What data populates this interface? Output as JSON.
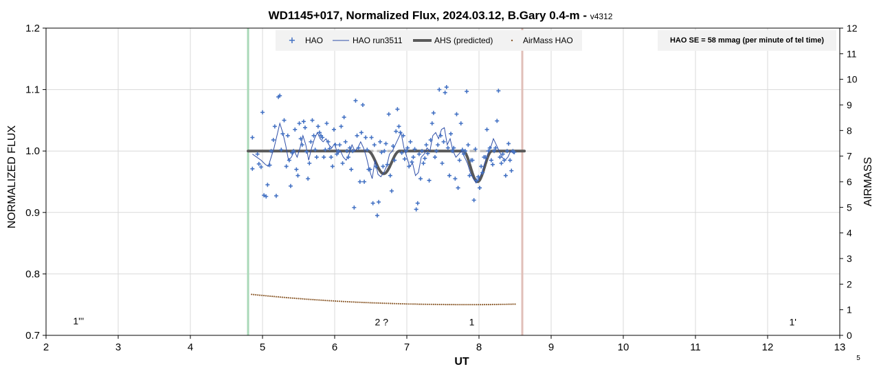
{
  "chart_data": {
    "type": "scatter",
    "title": "WD1145+017, Normalized Flux, 2024.03.12, B.Gary 0.4-m - ",
    "title_version": "v4312",
    "xlabel": "UT",
    "ylabel": "NORMALIZED FLUX",
    "y2label": "AIRMASS",
    "xlim": [
      2,
      13
    ],
    "ylim": [
      0.7,
      1.2
    ],
    "y2lim": [
      0,
      12
    ],
    "x_ticks": [
      "2",
      "3",
      "4",
      "5",
      "6",
      "7",
      "8",
      "9",
      "10",
      "11",
      "12",
      "13"
    ],
    "y_ticks": [
      "0.7",
      "0.8",
      "0.9",
      "1.0",
      "1.1",
      "1.2"
    ],
    "y2_ticks": [
      "0",
      "1",
      "2",
      "3",
      "4",
      "5",
      "6",
      "7",
      "8",
      "9",
      "10",
      "11",
      "12"
    ],
    "grid": true,
    "legend_position": "top",
    "legend": [
      {
        "label": "HAO",
        "color": "#4472C4",
        "style": "plus-marker"
      },
      {
        "label": "HAO run3511",
        "color": "#2F4FA8",
        "style": "thin-line"
      },
      {
        "label": "AHS (predicted)",
        "color": "#595959",
        "style": "thick-line"
      },
      {
        "label": "AirMass HAO",
        "color": "#8B5A2B",
        "style": "small-dot"
      }
    ],
    "note": "HAO SE = 58 mmag (per minute of tel time)",
    "vertical_markers": [
      {
        "x": 4.8,
        "color": "#A9D9B8"
      },
      {
        "x": 8.6,
        "color": "#E0BFB8"
      }
    ],
    "predicted_dips": [
      {
        "center": 6.68,
        "depth": 0.037,
        "half_width": 0.22
      },
      {
        "center": 7.98,
        "depth": 0.05,
        "half_width": 0.2
      }
    ],
    "predicted_x_range": [
      4.8,
      8.63
    ],
    "predicted_dashed_band": [
      6.3,
      8.45
    ],
    "annotations": [
      {
        "text": "1'''",
        "x": 2.45,
        "y": 0.718
      },
      {
        "text": "2 ?",
        "x": 6.65,
        "y": 0.716
      },
      {
        "text": "1",
        "x": 7.9,
        "y": 0.716
      },
      {
        "text": "1'",
        "x": 12.35,
        "y": 0.716
      }
    ],
    "corner_label": "5",
    "series": [
      {
        "name": "HAO",
        "color": "#4472C4",
        "points": [
          [
            4.86,
            1.022
          ],
          [
            4.86,
            0.971
          ],
          [
            4.93,
            0.995
          ],
          [
            4.95,
            0.979
          ],
          [
            4.98,
            0.974
          ],
          [
            5.0,
            1.063
          ],
          [
            5.02,
            0.928
          ],
          [
            5.05,
            0.926
          ],
          [
            5.07,
            0.945
          ],
          [
            5.1,
            0.977
          ],
          [
            5.12,
            1.0
          ],
          [
            5.15,
            1.018
          ],
          [
            5.17,
            1.04
          ],
          [
            5.19,
            0.927
          ],
          [
            5.22,
            1.088
          ],
          [
            5.24,
            1.09
          ],
          [
            5.26,
            1.002
          ],
          [
            5.28,
            1.028
          ],
          [
            5.3,
            1.05
          ],
          [
            5.33,
            0.975
          ],
          [
            5.35,
            1.025
          ],
          [
            5.37,
            0.985
          ],
          [
            5.39,
            0.943
          ],
          [
            5.41,
            0.997
          ],
          [
            5.43,
            1.0
          ],
          [
            5.45,
            1.035
          ],
          [
            5.47,
            0.97
          ],
          [
            5.49,
            0.96
          ],
          [
            5.51,
            1.045
          ],
          [
            5.53,
            1.02
          ],
          [
            5.55,
            1.01
          ],
          [
            5.57,
            1.048
          ],
          [
            5.59,
            1.038
          ],
          [
            5.61,
            0.999
          ],
          [
            5.63,
            0.955
          ],
          [
            5.65,
            0.98
          ],
          [
            5.67,
            1.015
          ],
          [
            5.69,
            1.05
          ],
          [
            5.71,
            1.025
          ],
          [
            5.73,
            1.002
          ],
          [
            5.75,
            0.99
          ],
          [
            5.77,
            1.04
          ],
          [
            5.79,
            1.03
          ],
          [
            5.81,
            1.025
          ],
          [
            5.83,
            1.022
          ],
          [
            5.85,
            0.99
          ],
          [
            5.87,
            1.002
          ],
          [
            5.89,
            1.045
          ],
          [
            5.91,
            1.015
          ],
          [
            5.93,
            1.004
          ],
          [
            5.95,
            0.99
          ],
          [
            5.97,
            0.975
          ],
          [
            5.99,
            1.035
          ],
          [
            6.01,
            1.01
          ],
          [
            6.03,
            0.995
          ],
          [
            6.05,
            1.0
          ],
          [
            6.07,
            1.01
          ],
          [
            6.09,
            1.04
          ],
          [
            6.11,
            0.98
          ],
          [
            6.13,
            1.055
          ],
          [
            6.15,
            1.015
          ],
          [
            6.17,
            1.0
          ],
          [
            6.19,
            0.99
          ],
          [
            6.21,
            1.005
          ],
          [
            6.23,
            0.97
          ],
          [
            6.25,
            1.0
          ],
          [
            6.27,
            0.908
          ],
          [
            6.29,
            1.082
          ],
          [
            6.31,
            1.025
          ],
          [
            6.33,
            1.005
          ],
          [
            6.35,
            0.95
          ],
          [
            6.37,
            1.03
          ],
          [
            6.39,
            1.075
          ],
          [
            6.41,
            0.95
          ],
          [
            6.43,
            1.022
          ],
          [
            6.45,
            1.002
          ],
          [
            6.47,
            0.97
          ],
          [
            6.49,
            0.97
          ],
          [
            6.51,
            1.022
          ],
          [
            6.53,
            0.915
          ],
          [
            6.55,
            1.01
          ],
          [
            6.57,
            0.975
          ],
          [
            6.59,
            0.895
          ],
          [
            6.61,
            0.917
          ],
          [
            6.63,
            1.015
          ],
          [
            6.65,
            0.998
          ],
          [
            6.67,
            0.975
          ],
          [
            6.69,
            1.0
          ],
          [
            6.71,
            1.012
          ],
          [
            6.73,
            0.978
          ],
          [
            6.75,
            1.06
          ],
          [
            6.77,
            0.96
          ],
          [
            6.79,
            0.935
          ],
          [
            6.81,
            1.008
          ],
          [
            6.83,
            0.985
          ],
          [
            6.85,
            1.032
          ],
          [
            6.87,
            1.068
          ],
          [
            6.89,
            1.04
          ],
          [
            6.91,
            1.03
          ],
          [
            6.93,
            0.997
          ],
          [
            6.95,
            1.025
          ],
          [
            6.97,
            0.987
          ],
          [
            6.99,
            1.0
          ],
          [
            7.01,
            1.005
          ],
          [
            7.03,
            0.975
          ],
          [
            7.05,
            1.015
          ],
          [
            7.07,
            0.982
          ],
          [
            7.09,
            0.99
          ],
          [
            7.11,
            1.003
          ],
          [
            7.13,
            0.905
          ],
          [
            7.15,
            0.915
          ],
          [
            7.17,
            0.995
          ],
          [
            7.19,
            0.955
          ],
          [
            7.21,
            1.0
          ],
          [
            7.23,
            0.98
          ],
          [
            7.25,
            0.988
          ],
          [
            7.27,
            1.01
          ],
          [
            7.29,
            0.996
          ],
          [
            7.31,
            0.952
          ],
          [
            7.33,
            1.018
          ],
          [
            7.35,
            1.045
          ],
          [
            7.37,
            1.062
          ],
          [
            7.39,
            0.99
          ],
          [
            7.41,
            1.0
          ],
          [
            7.43,
            1.01
          ],
          [
            7.45,
            1.1
          ],
          [
            7.47,
            1.025
          ],
          [
            7.49,
            0.98
          ],
          [
            7.51,
            1.015
          ],
          [
            7.53,
            1.095
          ],
          [
            7.55,
            1.104
          ],
          [
            7.57,
            1.005
          ],
          [
            7.59,
            0.96
          ],
          [
            7.61,
            1.028
          ],
          [
            7.63,
            1.0
          ],
          [
            7.65,
            1.005
          ],
          [
            7.67,
            0.955
          ],
          [
            7.69,
            1.06
          ],
          [
            7.71,
            0.94
          ],
          [
            7.73,
            0.985
          ],
          [
            7.75,
            1.045
          ],
          [
            7.77,
            1.002
          ],
          [
            7.79,
            0.995
          ],
          [
            7.81,
            1.0
          ],
          [
            7.83,
            1.097
          ],
          [
            7.85,
            1.01
          ],
          [
            7.87,
            0.96
          ],
          [
            7.89,
            0.985
          ],
          [
            7.91,
            0.985
          ],
          [
            7.93,
            0.92
          ],
          [
            7.95,
            1.003
          ],
          [
            7.97,
            0.952
          ],
          [
            7.99,
            0.958
          ],
          [
            8.01,
            0.94
          ],
          [
            8.03,
            0.975
          ],
          [
            8.05,
            0.965
          ],
          [
            8.07,
            0.99
          ],
          [
            8.09,
            0.99
          ],
          [
            8.11,
            1.035
          ],
          [
            8.13,
            1.0
          ],
          [
            8.15,
            1.005
          ],
          [
            8.17,
            0.985
          ],
          [
            8.19,
            0.978
          ],
          [
            8.21,
            1.0
          ],
          [
            8.23,
            1.005
          ],
          [
            8.25,
            1.049
          ],
          [
            8.27,
            1.098
          ],
          [
            8.29,
            0.99
          ],
          [
            8.31,
            0.98
          ],
          [
            8.33,
            0.995
          ],
          [
            8.35,
            0.985
          ],
          [
            8.37,
            0.96
          ],
          [
            8.39,
            1.0
          ],
          [
            8.41,
            1.012
          ],
          [
            8.43,
            0.985
          ],
          [
            8.45,
            0.968
          ],
          [
            8.47,
            1.0
          ],
          [
            8.49,
            0.998
          ]
        ]
      },
      {
        "name": "HAO run3511",
        "color": "#2F4FA8",
        "points": [
          [
            4.86,
            0.995
          ],
          [
            4.92,
            0.99
          ],
          [
            4.98,
            0.985
          ],
          [
            5.04,
            0.978
          ],
          [
            5.08,
            0.975
          ],
          [
            5.12,
            0.99
          ],
          [
            5.16,
            1.005
          ],
          [
            5.2,
            1.025
          ],
          [
            5.24,
            1.045
          ],
          [
            5.28,
            1.03
          ],
          [
            5.32,
            1.01
          ],
          [
            5.36,
            0.985
          ],
          [
            5.4,
            0.99
          ],
          [
            5.44,
            1.0
          ],
          [
            5.48,
            0.99
          ],
          [
            5.52,
            1.005
          ],
          [
            5.56,
            1.025
          ],
          [
            5.6,
            1.01
          ],
          [
            5.64,
            0.985
          ],
          [
            5.68,
            1.005
          ],
          [
            5.72,
            1.02
          ],
          [
            5.76,
            1.03
          ],
          [
            5.8,
            1.02
          ],
          [
            5.84,
            1.015
          ],
          [
            5.88,
            1.02
          ],
          [
            5.92,
            1.01
          ],
          [
            5.96,
            1.005
          ],
          [
            6.0,
            1.012
          ],
          [
            6.04,
            0.995
          ],
          [
            6.08,
            1.0
          ],
          [
            6.12,
            0.99
          ],
          [
            6.16,
            0.985
          ],
          [
            6.2,
            0.995
          ],
          [
            6.24,
            1.01
          ],
          [
            6.28,
            1.0
          ],
          [
            6.32,
            1.005
          ],
          [
            6.36,
            1.015
          ],
          [
            6.4,
            1.005
          ],
          [
            6.44,
            0.99
          ],
          [
            6.48,
            0.97
          ],
          [
            6.52,
            0.955
          ],
          [
            6.56,
            0.985
          ],
          [
            6.6,
            0.962
          ],
          [
            6.64,
            0.958
          ],
          [
            6.68,
            0.965
          ],
          [
            6.72,
            0.975
          ],
          [
            6.76,
            0.995
          ],
          [
            6.8,
            1.0
          ],
          [
            6.84,
            1.01
          ],
          [
            6.88,
            1.02
          ],
          [
            6.92,
            1.03
          ],
          [
            6.96,
            1.005
          ],
          [
            7.0,
            0.99
          ],
          [
            7.04,
            0.975
          ],
          [
            7.08,
            0.98
          ],
          [
            7.12,
            0.96
          ],
          [
            7.16,
            0.965
          ],
          [
            7.2,
            0.99
          ],
          [
            7.24,
            0.995
          ],
          [
            7.28,
            1.005
          ],
          [
            7.32,
            1.0
          ],
          [
            7.36,
            1.025
          ],
          [
            7.4,
            1.03
          ],
          [
            7.44,
            1.02
          ],
          [
            7.48,
            1.035
          ],
          [
            7.52,
            1.038
          ],
          [
            7.56,
            1.01
          ],
          [
            7.6,
            1.02
          ],
          [
            7.64,
            1.0
          ],
          [
            7.68,
            0.99
          ],
          [
            7.72,
            0.995
          ],
          [
            7.76,
            1.0
          ],
          [
            7.8,
            0.99
          ],
          [
            7.84,
            0.98
          ],
          [
            7.88,
            0.965
          ],
          [
            7.92,
            0.955
          ],
          [
            7.96,
            0.948
          ],
          [
            8.0,
            0.955
          ],
          [
            8.04,
            0.965
          ],
          [
            8.08,
            0.98
          ],
          [
            8.12,
            0.995
          ],
          [
            8.16,
            1.005
          ],
          [
            8.2,
            1.02
          ],
          [
            8.24,
            1.01
          ],
          [
            8.28,
            1.0
          ],
          [
            8.32,
            0.99
          ],
          [
            8.36,
            0.985
          ],
          [
            8.4,
            0.99
          ],
          [
            8.44,
            1.0
          ],
          [
            8.49,
            0.995
          ]
        ]
      },
      {
        "name": "AirMass HAO",
        "color": "#8B5A2B",
        "x_start": 4.85,
        "x_end": 8.5,
        "count": 130,
        "y_start": 1.6,
        "y_min": 1.2,
        "x_at_min": 7.9,
        "y_end": 1.22
      }
    ]
  }
}
